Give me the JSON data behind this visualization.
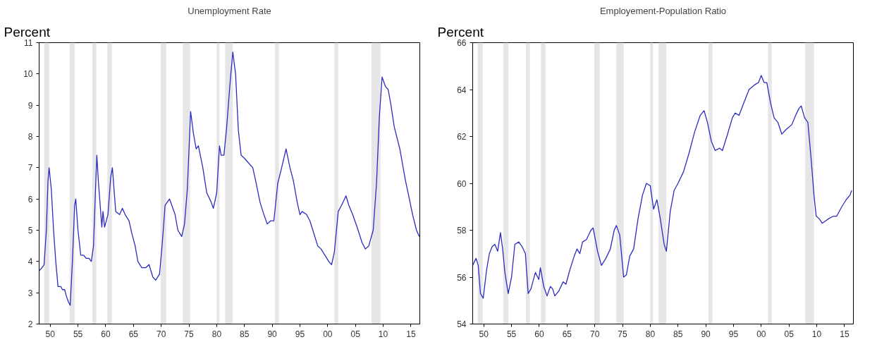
{
  "chart_data": [
    {
      "type": "line",
      "title": "Unemployment Rate",
      "ylabel": "Percent",
      "x": [
        1948.0,
        1948.5,
        1948.9,
        1949.3,
        1949.6,
        1949.8,
        1950.2,
        1950.6,
        1951.0,
        1951.4,
        1951.9,
        1952.2,
        1952.6,
        1952.9,
        1953.3,
        1953.6,
        1954.0,
        1954.4,
        1954.6,
        1955.0,
        1955.5,
        1956.0,
        1956.5,
        1957.0,
        1957.4,
        1957.8,
        1958.2,
        1958.4,
        1958.7,
        1959.3,
        1959.5,
        1959.8,
        1960.4,
        1960.9,
        1961.2,
        1961.8,
        1962.5,
        1963.0,
        1963.5,
        1964.2,
        1964.7,
        1965.3,
        1965.8,
        1966.5,
        1967.2,
        1967.8,
        1968.5,
        1969.0,
        1969.7,
        1970.2,
        1970.7,
        1971.5,
        1972.5,
        1973.0,
        1973.7,
        1974.2,
        1974.7,
        1975.3,
        1975.8,
        1976.3,
        1976.7,
        1977.5,
        1978.2,
        1979.0,
        1979.4,
        1980.0,
        1980.5,
        1980.8,
        1981.3,
        1981.8,
        1982.4,
        1982.9,
        1983.4,
        1983.9,
        1984.4,
        1985.0,
        1985.5,
        1986.5,
        1987.0,
        1987.8,
        1988.5,
        1989.1,
        1989.7,
        1990.3,
        1991.0,
        1991.7,
        1992.5,
        1993.2,
        1993.8,
        1994.5,
        1995.0,
        1995.4,
        1996.2,
        1996.8,
        1997.5,
        1998.2,
        1998.8,
        1999.5,
        2000.2,
        2000.7,
        2001.2,
        2001.9,
        2002.5,
        2003.3,
        2003.8,
        2004.5,
        2005.3,
        2006.2,
        2006.8,
        2007.4,
        2008.2,
        2008.8,
        2009.3,
        2009.8,
        2010.4,
        2010.9,
        2011.4,
        2012.0,
        2013.0,
        2014.0,
        2014.6,
        2015.3,
        2016.0,
        2016.5
      ],
      "series": [
        {
          "color": "#2b2bc4",
          "values": [
            3.7,
            3.8,
            3.9,
            5.0,
            6.6,
            7.0,
            6.3,
            5.0,
            4.0,
            3.2,
            3.2,
            3.1,
            3.1,
            2.9,
            2.7,
            2.6,
            4.0,
            5.8,
            6.0,
            5.0,
            4.2,
            4.2,
            4.1,
            4.1,
            4.0,
            4.5,
            6.5,
            7.4,
            6.5,
            5.1,
            5.6,
            5.1,
            5.5,
            6.7,
            7.0,
            5.6,
            5.5,
            5.7,
            5.5,
            5.3,
            4.9,
            4.5,
            4.0,
            3.8,
            3.8,
            3.9,
            3.5,
            3.4,
            3.6,
            4.6,
            5.8,
            6.0,
            5.5,
            5.0,
            4.8,
            5.2,
            6.3,
            8.8,
            8.1,
            7.6,
            7.7,
            7.0,
            6.2,
            5.9,
            5.7,
            6.2,
            7.7,
            7.4,
            7.4,
            8.3,
            9.7,
            10.7,
            10.0,
            8.2,
            7.4,
            7.3,
            7.2,
            7.0,
            6.6,
            5.9,
            5.5,
            5.2,
            5.3,
            5.3,
            6.5,
            7.0,
            7.6,
            7.0,
            6.6,
            5.9,
            5.5,
            5.6,
            5.5,
            5.3,
            4.9,
            4.5,
            4.4,
            4.2,
            4.0,
            3.9,
            4.3,
            5.6,
            5.8,
            6.1,
            5.8,
            5.5,
            5.1,
            4.6,
            4.4,
            4.5,
            5.0,
            6.5,
            8.6,
            9.9,
            9.6,
            9.5,
            9.0,
            8.3,
            7.6,
            6.6,
            6.1,
            5.5,
            5.0,
            4.8
          ]
        }
      ],
      "xlim": [
        1948.0,
        2016.6
      ],
      "xticks": [
        {
          "value": 1950,
          "label": "50"
        },
        {
          "value": 1955,
          "label": "55"
        },
        {
          "value": 1960,
          "label": "60"
        },
        {
          "value": 1965,
          "label": "65"
        },
        {
          "value": 1970,
          "label": "70"
        },
        {
          "value": 1975,
          "label": "75"
        },
        {
          "value": 1980,
          "label": "80"
        },
        {
          "value": 1985,
          "label": "85"
        },
        {
          "value": 1990,
          "label": "90"
        },
        {
          "value": 1995,
          "label": "95"
        },
        {
          "value": 2000,
          "label": "00"
        },
        {
          "value": 2005,
          "label": "05"
        },
        {
          "value": 2010,
          "label": "10"
        },
        {
          "value": 2015,
          "label": "15"
        }
      ],
      "ylim": [
        2,
        11
      ],
      "yticks": [
        2,
        3,
        4,
        5,
        6,
        7,
        8,
        9,
        10,
        11
      ],
      "grid": false,
      "line_style": "solid",
      "bands": [
        {
          "axis": "x",
          "from": 1948.9,
          "to": 1949.8,
          "color": "#e6e6e6"
        },
        {
          "axis": "x",
          "from": 1953.5,
          "to": 1954.4,
          "color": "#e6e6e6"
        },
        {
          "axis": "x",
          "from": 1957.6,
          "to": 1958.3,
          "color": "#e6e6e6"
        },
        {
          "axis": "x",
          "from": 1960.3,
          "to": 1961.1,
          "color": "#e6e6e6"
        },
        {
          "axis": "x",
          "from": 1969.9,
          "to": 1970.9,
          "color": "#e6e6e6"
        },
        {
          "axis": "x",
          "from": 1973.9,
          "to": 1975.2,
          "color": "#e6e6e6"
        },
        {
          "axis": "x",
          "from": 1980.0,
          "to": 1980.5,
          "color": "#e6e6e6"
        },
        {
          "axis": "x",
          "from": 1981.5,
          "to": 1982.9,
          "color": "#e6e6e6"
        },
        {
          "axis": "x",
          "from": 1990.5,
          "to": 1991.2,
          "color": "#e6e6e6"
        },
        {
          "axis": "x",
          "from": 2001.2,
          "to": 2001.9,
          "color": "#e6e6e6"
        },
        {
          "axis": "x",
          "from": 2007.9,
          "to": 2009.5,
          "color": "#e6e6e6"
        }
      ]
    },
    {
      "type": "line",
      "title": "Employement-Population Ratio",
      "ylabel": "Percent",
      "x": [
        1948.0,
        1948.6,
        1949.0,
        1949.4,
        1949.9,
        1950.5,
        1951.0,
        1951.5,
        1952.0,
        1952.5,
        1953.0,
        1953.4,
        1953.8,
        1954.4,
        1955.0,
        1955.6,
        1956.3,
        1956.9,
        1957.5,
        1958.0,
        1958.5,
        1959.3,
        1959.9,
        1960.2,
        1960.8,
        1961.4,
        1962.0,
        1962.4,
        1962.8,
        1963.5,
        1964.3,
        1964.8,
        1965.5,
        1966.3,
        1966.8,
        1967.3,
        1967.8,
        1968.5,
        1969.3,
        1969.7,
        1970.5,
        1971.2,
        1972.0,
        1972.8,
        1973.5,
        1973.9,
        1974.5,
        1975.2,
        1975.7,
        1976.3,
        1977.0,
        1977.8,
        1978.6,
        1979.3,
        1980.0,
        1980.6,
        1981.2,
        1981.8,
        1982.5,
        1982.9,
        1983.6,
        1984.3,
        1985.0,
        1986.0,
        1987.0,
        1988.0,
        1989.0,
        1989.7,
        1990.3,
        1991.0,
        1991.7,
        1992.5,
        1993.0,
        1993.8,
        1994.8,
        1995.3,
        1996.0,
        1996.8,
        1997.8,
        1998.8,
        1999.5,
        2000.0,
        2000.5,
        2001.0,
        2001.7,
        2002.3,
        2003.0,
        2003.7,
        2004.5,
        2005.5,
        2006.2,
        2006.8,
        2007.2,
        2007.8,
        2008.4,
        2009.0,
        2009.5,
        2009.9,
        2010.4,
        2011.0,
        2011.6,
        2012.2,
        2013.0,
        2013.6,
        2014.5,
        2015.3,
        2016.0,
        2016.3
      ],
      "series": [
        {
          "color": "#2b2bc4",
          "values": [
            56.5,
            56.8,
            56.5,
            55.3,
            55.1,
            56.3,
            57.0,
            57.3,
            57.4,
            57.1,
            57.9,
            57.2,
            56.2,
            55.3,
            56.0,
            57.4,
            57.5,
            57.3,
            57.0,
            55.3,
            55.5,
            56.2,
            55.9,
            56.4,
            55.6,
            55.2,
            55.6,
            55.5,
            55.2,
            55.4,
            55.8,
            55.7,
            56.3,
            56.9,
            57.2,
            57.0,
            57.5,
            57.6,
            58.0,
            58.1,
            57.1,
            56.5,
            56.8,
            57.2,
            58.0,
            58.2,
            57.8,
            56.0,
            56.1,
            56.9,
            57.2,
            58.5,
            59.5,
            60.0,
            59.9,
            58.9,
            59.3,
            58.5,
            57.4,
            57.1,
            58.8,
            59.7,
            60.0,
            60.5,
            61.3,
            62.2,
            62.9,
            63.1,
            62.6,
            61.8,
            61.4,
            61.5,
            61.4,
            62.0,
            62.8,
            63.0,
            62.9,
            63.4,
            64.0,
            64.2,
            64.3,
            64.6,
            64.3,
            64.3,
            63.4,
            62.8,
            62.6,
            62.1,
            62.3,
            62.5,
            62.9,
            63.2,
            63.3,
            62.8,
            62.6,
            61.0,
            59.5,
            58.6,
            58.5,
            58.3,
            58.4,
            58.5,
            58.6,
            58.6,
            59.0,
            59.3,
            59.5,
            59.7
          ]
        }
      ],
      "xlim": [
        1948.0,
        2016.6
      ],
      "xticks": [
        {
          "value": 1950,
          "label": "50"
        },
        {
          "value": 1955,
          "label": "55"
        },
        {
          "value": 1960,
          "label": "60"
        },
        {
          "value": 1965,
          "label": "65"
        },
        {
          "value": 1970,
          "label": "70"
        },
        {
          "value": 1975,
          "label": "75"
        },
        {
          "value": 1980,
          "label": "80"
        },
        {
          "value": 1985,
          "label": "85"
        },
        {
          "value": 1990,
          "label": "90"
        },
        {
          "value": 1995,
          "label": "95"
        },
        {
          "value": 2000,
          "label": "00"
        },
        {
          "value": 2005,
          "label": "05"
        },
        {
          "value": 2010,
          "label": "10"
        },
        {
          "value": 2015,
          "label": "15"
        }
      ],
      "ylim": [
        54,
        66
      ],
      "yticks": [
        54,
        56,
        58,
        60,
        62,
        64,
        66
      ],
      "grid": false,
      "line_style": "solid",
      "bands": [
        {
          "axis": "x",
          "from": 1948.9,
          "to": 1949.8,
          "color": "#e6e6e6"
        },
        {
          "axis": "x",
          "from": 1953.5,
          "to": 1954.4,
          "color": "#e6e6e6"
        },
        {
          "axis": "x",
          "from": 1957.6,
          "to": 1958.3,
          "color": "#e6e6e6"
        },
        {
          "axis": "x",
          "from": 1960.3,
          "to": 1961.1,
          "color": "#e6e6e6"
        },
        {
          "axis": "x",
          "from": 1969.9,
          "to": 1970.9,
          "color": "#e6e6e6"
        },
        {
          "axis": "x",
          "from": 1973.9,
          "to": 1975.2,
          "color": "#e6e6e6"
        },
        {
          "axis": "x",
          "from": 1980.0,
          "to": 1980.5,
          "color": "#e6e6e6"
        },
        {
          "axis": "x",
          "from": 1981.5,
          "to": 1982.9,
          "color": "#e6e6e6"
        },
        {
          "axis": "x",
          "from": 1990.5,
          "to": 1991.2,
          "color": "#e6e6e6"
        },
        {
          "axis": "x",
          "from": 2001.2,
          "to": 2001.9,
          "color": "#e6e6e6"
        },
        {
          "axis": "x",
          "from": 2007.9,
          "to": 2009.5,
          "color": "#e6e6e6"
        }
      ]
    }
  ]
}
